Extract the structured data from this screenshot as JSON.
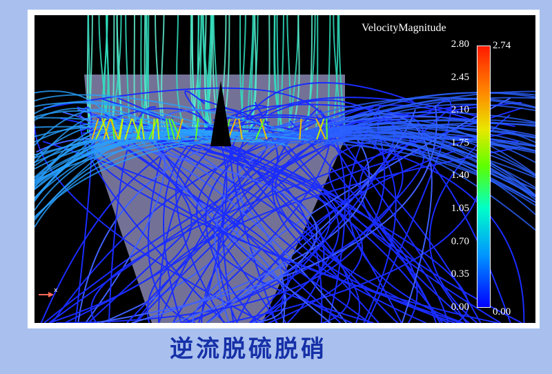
{
  "colorbar": {
    "title": "VelocityMagnitude",
    "ticks": [
      "2.80",
      "2.45",
      "2.10",
      "1.75",
      "1.40",
      "1.05",
      "0.70",
      "0.35",
      "0.00"
    ],
    "max_marker": "2.74",
    "min_marker": "0.00",
    "colors": [
      "#ff1a00",
      "#ff8a00",
      "#e8e800",
      "#5cff00",
      "#00ffc8",
      "#0096ff",
      "#0000ff"
    ]
  },
  "axis_label": "x",
  "caption": "逆流脱硫脱硝"
}
